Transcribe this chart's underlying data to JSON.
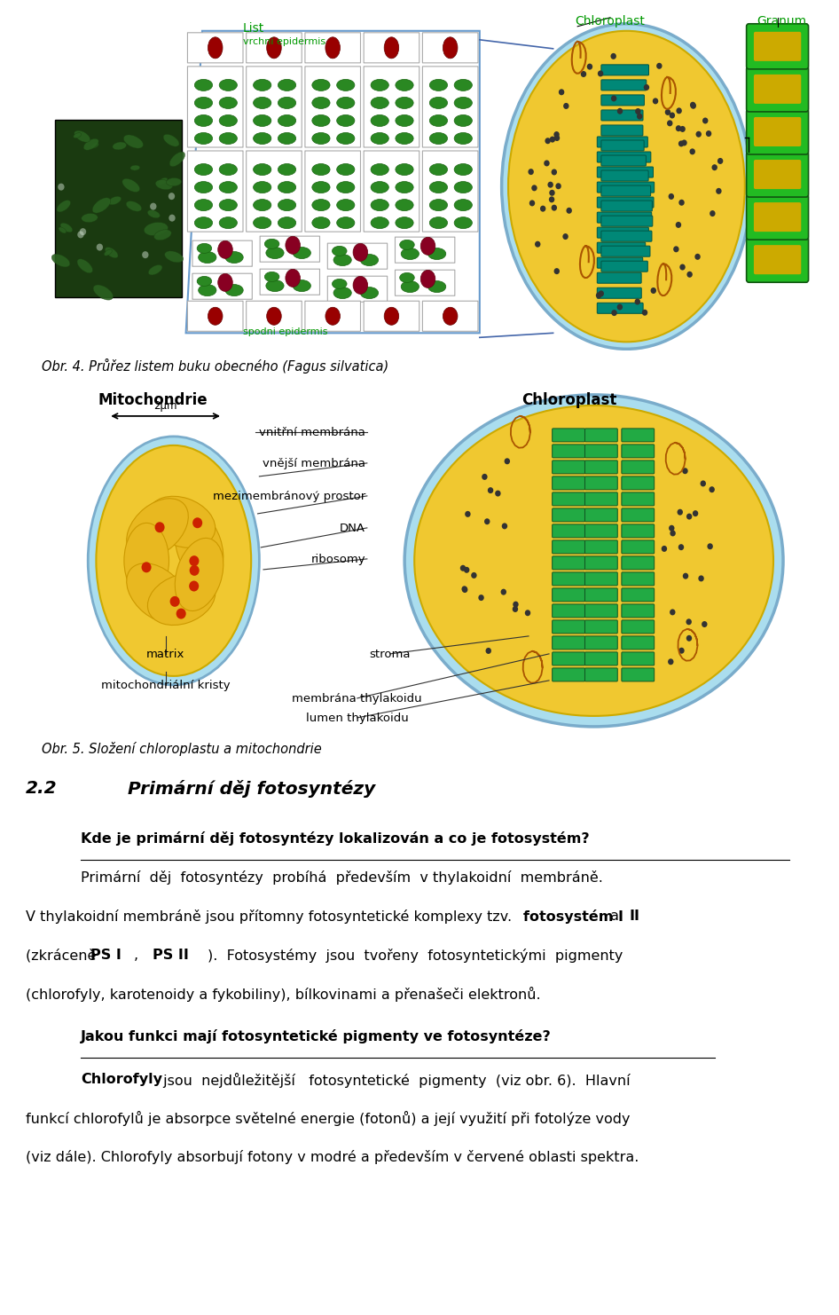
{
  "fig_width": 9.6,
  "fig_height": 14.83,
  "bg_color": "#ffffff",
  "image1_bg": "#ffffcc",
  "image2_bg": "#ffffcc",
  "caption1": "Obr. 4. Průřez listem buku obecného (Fagus silvatica)",
  "caption2": "Obr. 5. Složení chloroplastu a mitochondrie",
  "section_num": "2.2",
  "section_title": "Primární děj fotosyntézy",
  "question1": "Kde je primární děj fotosyntézy lokalizován a co je fotosystém?",
  "question2": "Jakou funkci mají fotosyntetické pigmenty ve fotosyntéze?",
  "para1": "Primární  děj  fotosyntézy  probíhá  především  v thylakoidní  membráně.",
  "para2_a": "V thylakoidní membráně jsou přítomny fotosyntetické komplexy tzv.",
  "para2_bold1": "fotosystém I",
  "para2_mid": "a",
  "para2_bold2": "II",
  "para3_a": "(zkráceně ",
  "para3_bold1": "PS I",
  "para3_mid": ",",
  "para3_bold2": "PS II",
  "para3_b": ").  Fotosystémy  jsou  tvořeny  fotosyntetickými  pigmenty",
  "para4": "(chlorofyly, karotenoidy a fykobiliny), bílkovinami a přenašeči elektronů.",
  "para5_bold": "Chlorofyly",
  "para5_rest": " jsou  nejdůležitější   fotosyntetické  pigmenty  (viz obr. 6).  Hlavní",
  "para6": "funkcí chlorofylů je absorpce světelné energie (fotonů) a její využití při fotolýze vody",
  "para7": "(viz dále). Chlorofyly absorbují fotony v modré a především v červené oblasti spektra.",
  "cell_white": "#ffffff",
  "cell_green": "#2e8b22",
  "cell_darkred": "#8b0000",
  "cell_border": "#aaaaaa",
  "stroma_color": "#f0c830",
  "outer_membrane": "#aaddee",
  "thylakoid_color": "#008877",
  "granum_green": "#22aa22",
  "granum_yellow": "#ccaa00"
}
